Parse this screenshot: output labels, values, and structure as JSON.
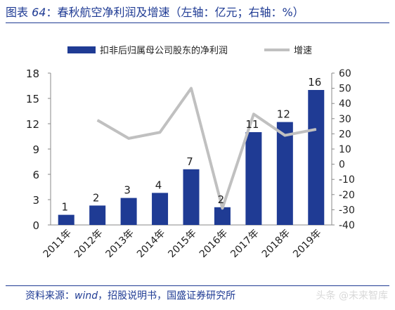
{
  "title": {
    "prefix": "图表",
    "number": "64",
    "text": "：春秋航空净利润及增速（左轴：亿元；右轴：%）"
  },
  "source": {
    "prefix": "资料来源：",
    "wind": "wind",
    "text": "，招股说明书，国盛证券研究所"
  },
  "watermark": "头条 @未来智库",
  "chart_data": {
    "type": "bar",
    "categories": [
      "2011年",
      "2012年",
      "2013年",
      "2014年",
      "2015年",
      "2016年",
      "2017年",
      "2018年",
      "2019年"
    ],
    "series": [
      {
        "name": "扣非后归属母公司股东的净利润",
        "type": "bar",
        "axis": "left",
        "color": "#1f3b94",
        "values": [
          1.2,
          2.3,
          3.2,
          3.8,
          6.6,
          2.1,
          11.0,
          12.2,
          16.0
        ],
        "labels": [
          "1",
          "2",
          "3",
          "4",
          "7",
          "2",
          "11",
          "12",
          "16"
        ]
      },
      {
        "name": "增速",
        "type": "line",
        "axis": "right",
        "color": "#c0c0c0",
        "values": [
          null,
          29,
          17,
          21,
          50,
          -29,
          33,
          19,
          23
        ]
      }
    ],
    "y_left": {
      "min": 0,
      "max": 18,
      "ticks": [
        0,
        3,
        6,
        9,
        12,
        15,
        18
      ]
    },
    "y_right": {
      "min": -40,
      "max": 60,
      "ticks": [
        -40,
        -30,
        -20,
        -10,
        0,
        10,
        20,
        30,
        40,
        50,
        60
      ]
    },
    "legend_position": "top",
    "grid": false
  }
}
